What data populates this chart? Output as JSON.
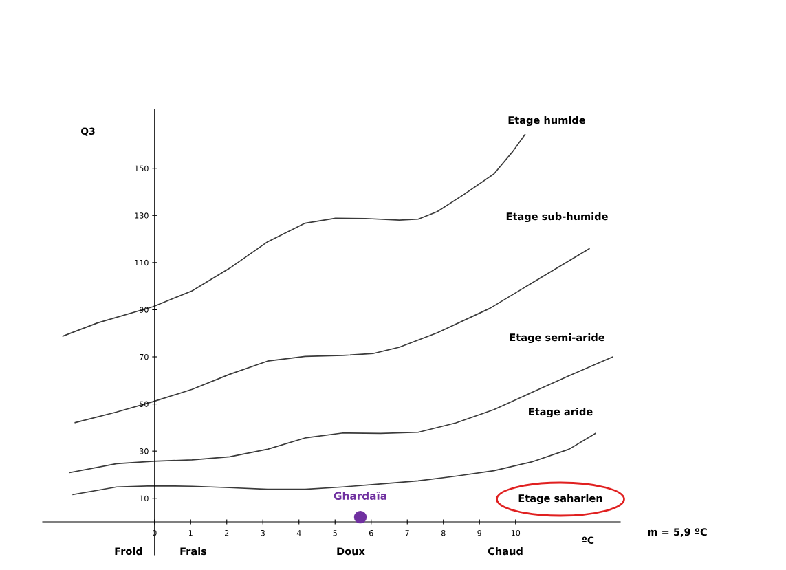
{
  "chart_data": {
    "type": "line",
    "xlabel": "ºC",
    "ylabel": "Q3",
    "xlim": [
      -3.1,
      12.9
    ],
    "ylim": [
      -14,
      175
    ],
    "xticks": [
      0,
      1,
      2,
      3,
      4,
      5,
      6,
      7,
      8,
      9,
      10
    ],
    "yticks": [
      10,
      30,
      50,
      70,
      90,
      110,
      130,
      150
    ],
    "grid": false,
    "legend": false,
    "marker": "none",
    "line_style": "solid",
    "series": [
      {
        "color": "#3a3a3a",
        "x": [
          -2.54,
          -1.58,
          -0.04,
          1.04,
          2.08,
          3.13,
          4.17,
          5.01,
          5.84,
          6.78,
          7.3,
          7.83,
          8.56,
          9.4,
          9.92,
          10.26
        ],
        "values": [
          78.8,
          84.4,
          91.3,
          98.0,
          107.6,
          118.8,
          126.7,
          128.8,
          128.7,
          128.0,
          128.4,
          131.6,
          138.8,
          147.6,
          157.1,
          164.3
        ]
      },
      {
        "color": "#3a3a3a",
        "x": [
          -2.2,
          -1.05,
          -0.04,
          1.04,
          2.08,
          3.13,
          4.17,
          5.22,
          6.05,
          6.78,
          7.83,
          9.29,
          10.44,
          12.04
        ],
        "values": [
          42.1,
          46.6,
          51.0,
          56.2,
          62.6,
          68.2,
          70.2,
          70.6,
          71.4,
          74.1,
          80.2,
          90.6,
          101.2,
          115.9
        ]
      },
      {
        "color": "#3a3a3a",
        "x": [
          -2.34,
          -1.05,
          -0.04,
          1.04,
          2.08,
          3.13,
          4.17,
          5.22,
          6.26,
          7.3,
          8.35,
          9.4,
          10.44,
          11.48,
          12.69
        ],
        "values": [
          20.9,
          24.7,
          25.7,
          26.3,
          27.6,
          30.8,
          35.6,
          37.7,
          37.5,
          38.0,
          42.0,
          47.6,
          54.8,
          62.0,
          70.0
        ]
      },
      {
        "color": "#3a3a3a",
        "x": [
          -2.26,
          -1.05,
          -0.04,
          1.04,
          2.08,
          3.13,
          4.17,
          5.22,
          6.26,
          7.3,
          8.35,
          9.4,
          10.44,
          11.48,
          12.21
        ],
        "values": [
          11.6,
          14.8,
          15.3,
          15.1,
          14.5,
          13.8,
          13.8,
          14.8,
          16.1,
          17.4,
          19.4,
          21.7,
          25.4,
          30.8,
          37.5
        ]
      },
      {
        "type": "scatter",
        "name": "Ghardaïa",
        "color": "#7030a0",
        "marker": "circle",
        "x": [
          5.7
        ],
        "values": [
          2
        ]
      }
    ],
    "annotations": [
      "Etage humide",
      "Etage sub-humide",
      "Etage semi-aride",
      "Etage aride",
      "Etage saharien",
      "m = 5,9 ºC",
      "Froid",
      "Frais",
      "Doux",
      "Chaud"
    ]
  }
}
